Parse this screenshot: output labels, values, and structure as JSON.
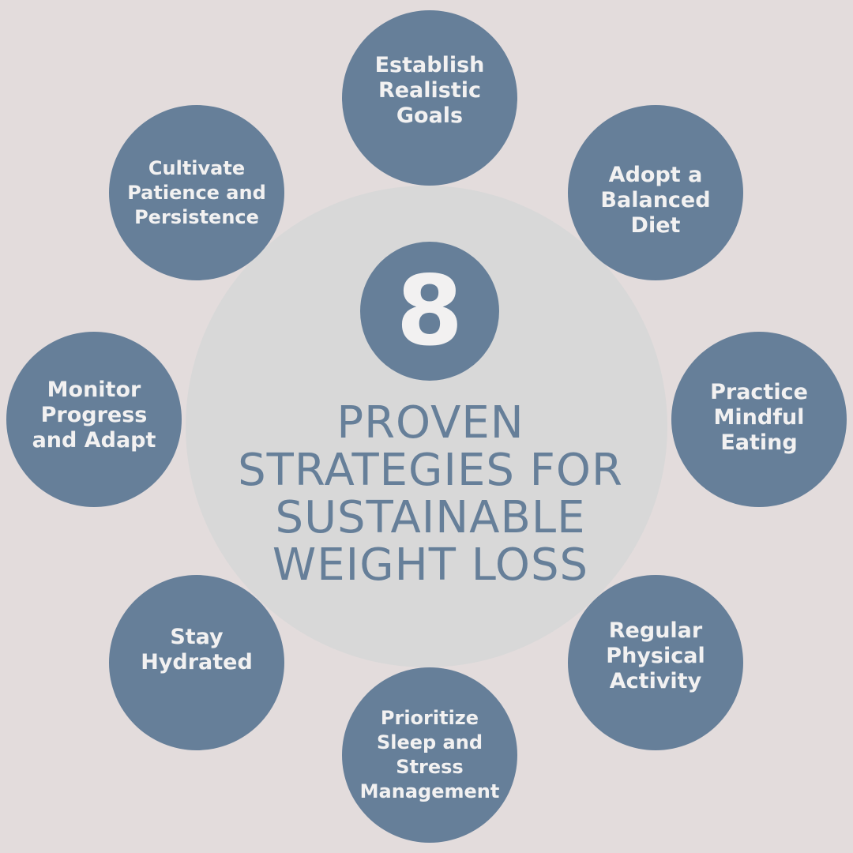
{
  "number": "8",
  "headline": {
    "line1": "PROVEN",
    "line2": "STRATEGIES FOR",
    "line3": "SUSTAINABLE",
    "line4": "WEIGHT LOSS"
  },
  "strategies": [
    {
      "label": "Establish\nRealistic\nGoals"
    },
    {
      "label": "Adopt a\nBalanced\nDiet"
    },
    {
      "label": "Practice\nMindful\nEating"
    },
    {
      "label": "Regular\nPhysical\nActivity"
    },
    {
      "label": "Prioritize\nSleep and\nStress\nManagement"
    },
    {
      "label": "Stay\nHydrated"
    },
    {
      "label": "Monitor\nProgress\nand Adapt"
    },
    {
      "label": "Cultivate\nPatience and\nPersistence"
    }
  ],
  "colors": {
    "background": "#e3dcdc",
    "center_disc": "#d8d8d8",
    "accent": "#667f99",
    "text_light": "#f2f1f1"
  }
}
